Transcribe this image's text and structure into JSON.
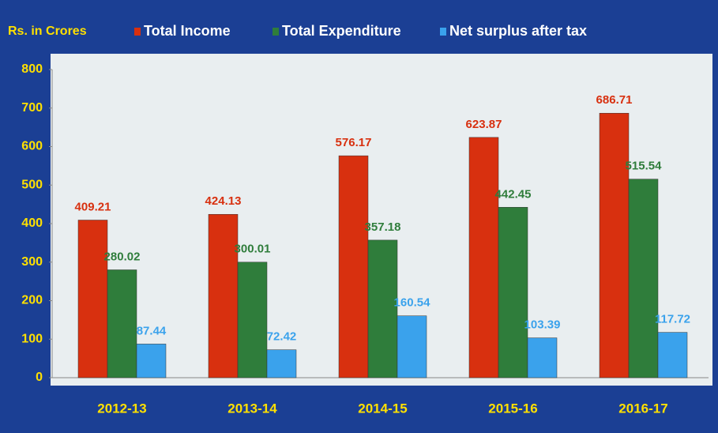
{
  "chart_data": {
    "type": "bar",
    "y_label": "Rs. in Crores",
    "categories": [
      "2012-13",
      "2013-14",
      "2014-15",
      "2015-16",
      "2016-17"
    ],
    "series": [
      {
        "name": "Total Income",
        "color": "#d8300f",
        "values": [
          409.21,
          424.13,
          576.17,
          623.87,
          686.71
        ]
      },
      {
        "name": "Total Expenditure",
        "color": "#2f7d3b",
        "values": [
          280.02,
          300.01,
          357.18,
          442.45,
          515.54
        ]
      },
      {
        "name": "Net surplus after tax",
        "color": "#3aa2ec",
        "values": [
          87.44,
          72.42,
          160.54,
          103.39,
          117.72
        ]
      }
    ],
    "ylim": [
      0,
      800
    ],
    "yticks": [
      0,
      100,
      200,
      300,
      400,
      500,
      600,
      700,
      800
    ],
    "grid": false
  }
}
